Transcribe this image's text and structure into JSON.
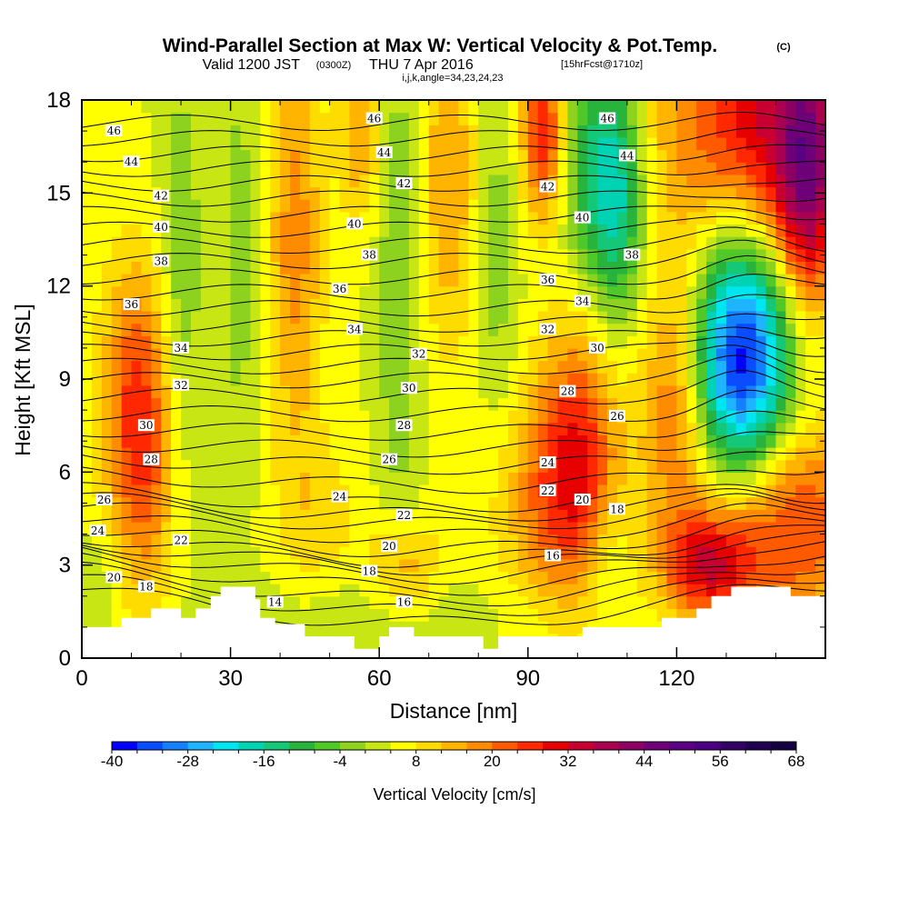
{
  "chart_data": {
    "type": "heatmap",
    "title": "Wind-Parallel Section at Max W: Vertical Velocity & Pot.Temp.",
    "title_mark": "(C)",
    "subtitle": {
      "valid": "Valid 1200 JST",
      "utc": "(0300Z)",
      "date": "THU 7 Apr 2016",
      "forecast": "[15hrFcst@1710z]"
    },
    "subtitle2": "i,j,k,angle=34,23,24,23",
    "xlabel": "Distance [nm]",
    "ylabel": "Height [Kft MSL]",
    "xlim": [
      0,
      150
    ],
    "ylim": [
      0,
      18
    ],
    "x_ticks": [
      0,
      30,
      60,
      90,
      120
    ],
    "y_ticks": [
      0,
      3,
      6,
      9,
      12,
      15,
      18
    ],
    "colorbar": {
      "title": "Vertical Velocity [cm/s]",
      "min": -40,
      "max": 68,
      "step": 4,
      "tick_labels": [
        "-40",
        "-28",
        "-16",
        "-4",
        "8",
        "20",
        "32",
        "44",
        "56",
        "68"
      ],
      "colors": [
        "#0000ff",
        "#0a4cff",
        "#1480ff",
        "#1eb4ff",
        "#00e6f0",
        "#00d2b4",
        "#14c878",
        "#28b43c",
        "#50c828",
        "#8cd21e",
        "#c8e614",
        "#ffff00",
        "#ffdc00",
        "#ffb400",
        "#ff8c00",
        "#ff5a00",
        "#ff2800",
        "#e60000",
        "#c80032",
        "#aa0050",
        "#8c0064",
        "#6e0078",
        "#5a0082",
        "#4b0082",
        "#320064",
        "#1e0050",
        "#140040"
      ]
    },
    "terrain": [
      [
        0,
        1.0
      ],
      [
        8,
        1.0
      ],
      [
        8,
        1.3
      ],
      [
        14,
        1.3
      ],
      [
        14,
        1.6
      ],
      [
        20,
        1.6
      ],
      [
        20,
        1.3
      ],
      [
        23,
        1.3
      ],
      [
        23,
        1.6
      ],
      [
        26,
        1.6
      ],
      [
        26,
        2.0
      ],
      [
        28,
        2.0
      ],
      [
        28,
        2.3
      ],
      [
        35,
        2.3
      ],
      [
        35,
        1.9
      ],
      [
        36,
        1.9
      ],
      [
        36,
        1.3
      ],
      [
        39,
        1.3
      ],
      [
        39,
        1.1
      ],
      [
        45,
        1.1
      ],
      [
        45,
        0.7
      ],
      [
        55,
        0.7
      ],
      [
        55,
        0.3
      ],
      [
        60,
        0.3
      ],
      [
        60,
        0.7
      ],
      [
        62,
        0.7
      ],
      [
        62,
        1.0
      ],
      [
        67,
        1.0
      ],
      [
        67,
        0.7
      ],
      [
        81,
        0.7
      ],
      [
        81,
        0.3
      ],
      [
        84,
        0.3
      ],
      [
        84,
        0.7
      ],
      [
        101,
        0.7
      ],
      [
        101,
        1.0
      ],
      [
        117,
        1.0
      ],
      [
        117,
        1.3
      ],
      [
        124,
        1.3
      ],
      [
        124,
        1.6
      ],
      [
        127,
        1.6
      ],
      [
        127,
        2.0
      ],
      [
        131,
        2.0
      ],
      [
        131,
        2.3
      ],
      [
        143,
        2.3
      ],
      [
        143,
        2.0
      ],
      [
        150,
        2.0
      ]
    ],
    "field_features": [
      {
        "x": 133,
        "y": 9.5,
        "w": -38,
        "sx": 7,
        "sy": 3.0
      },
      {
        "x": 134,
        "y": 11.5,
        "w": -10,
        "sx": 10,
        "sy": 5.5
      },
      {
        "x": 108,
        "y": 15.0,
        "w": -22,
        "sx": 4,
        "sy": 3.0
      },
      {
        "x": 102,
        "y": 16.0,
        "w": -12,
        "sx": 4,
        "sy": 2.5
      },
      {
        "x": 140,
        "y": 4.5,
        "w": 26,
        "sx": 12,
        "sy": 2.5
      },
      {
        "x": 126,
        "y": 3.0,
        "w": 22,
        "sx": 6,
        "sy": 1.2
      },
      {
        "x": 120,
        "y": 8.5,
        "w": 18,
        "sx": 5,
        "sy": 3.0
      },
      {
        "x": 138,
        "y": 17.0,
        "w": 34,
        "sx": 14,
        "sy": 3.5
      },
      {
        "x": 146,
        "y": 15.0,
        "w": 22,
        "sx": 4,
        "sy": 3.0
      },
      {
        "x": 100,
        "y": 6.5,
        "w": 22,
        "sx": 6,
        "sy": 3.0
      },
      {
        "x": 92,
        "y": 5.0,
        "w": 10,
        "sx": 8,
        "sy": 2.5
      },
      {
        "x": 93,
        "y": 17.0,
        "w": 24,
        "sx": 3,
        "sy": 2.0
      },
      {
        "x": 12,
        "y": 6.5,
        "w": 18,
        "sx": 5,
        "sy": 3.5
      },
      {
        "x": 10,
        "y": 9.5,
        "w": 8,
        "sx": 5,
        "sy": 3.0
      },
      {
        "x": 43,
        "y": 13.5,
        "w": 14,
        "sx": 4,
        "sy": 5.0
      },
      {
        "x": 74,
        "y": 15.5,
        "w": 12,
        "sx": 4,
        "sy": 4.0
      },
      {
        "x": 56,
        "y": 17.0,
        "w": 12,
        "sx": 3,
        "sy": 2.0
      },
      {
        "x": 65,
        "y": 2.8,
        "w": 12,
        "sx": 5,
        "sy": 1.2
      },
      {
        "x": 48,
        "y": 4.5,
        "w": 6,
        "sx": 6,
        "sy": 2.0
      },
      {
        "x": 20,
        "y": 12.0,
        "w": -8,
        "sx": 3,
        "sy": 5.0
      },
      {
        "x": 32,
        "y": 13.0,
        "w": -6,
        "sx": 3,
        "sy": 5.0
      },
      {
        "x": 64,
        "y": 12.0,
        "w": -8,
        "sx": 3,
        "sy": 6.0
      },
      {
        "x": 84,
        "y": 13.0,
        "w": -6,
        "sx": 3,
        "sy": 5.0
      },
      {
        "x": 60,
        "y": 1.5,
        "w": -4,
        "sx": 20,
        "sy": 1.0
      },
      {
        "x": 106,
        "y": 3.5,
        "w": -6,
        "sx": 3,
        "sy": 1.5
      },
      {
        "x": 5,
        "y": 2.5,
        "w": -4,
        "sx": 4,
        "sy": 1.5
      }
    ],
    "contour_labels": [
      {
        "x": 6.5,
        "y": 17.0,
        "text": "46"
      },
      {
        "x": 10,
        "y": 16.0,
        "text": "44"
      },
      {
        "x": 16,
        "y": 14.9,
        "text": "42"
      },
      {
        "x": 16,
        "y": 13.9,
        "text": "40"
      },
      {
        "x": 16,
        "y": 12.8,
        "text": "38"
      },
      {
        "x": 10,
        "y": 11.4,
        "text": "36"
      },
      {
        "x": 20,
        "y": 10.0,
        "text": "34"
      },
      {
        "x": 20,
        "y": 8.8,
        "text": "32"
      },
      {
        "x": 13,
        "y": 7.5,
        "text": "30"
      },
      {
        "x": 14,
        "y": 6.4,
        "text": "28"
      },
      {
        "x": 4.5,
        "y": 5.1,
        "text": "26"
      },
      {
        "x": 3.2,
        "y": 4.1,
        "text": "24"
      },
      {
        "x": 20,
        "y": 3.8,
        "text": "22"
      },
      {
        "x": 6.5,
        "y": 2.6,
        "text": "20"
      },
      {
        "x": 13,
        "y": 2.3,
        "text": "18"
      },
      {
        "x": 39,
        "y": 1.8,
        "text": "14"
      },
      {
        "x": 59,
        "y": 17.4,
        "text": "46"
      },
      {
        "x": 61,
        "y": 16.3,
        "text": "44"
      },
      {
        "x": 65,
        "y": 15.3,
        "text": "42"
      },
      {
        "x": 55,
        "y": 14.0,
        "text": "40"
      },
      {
        "x": 58,
        "y": 13.0,
        "text": "38"
      },
      {
        "x": 52,
        "y": 11.9,
        "text": "36"
      },
      {
        "x": 55,
        "y": 10.6,
        "text": "34"
      },
      {
        "x": 68,
        "y": 9.8,
        "text": "32"
      },
      {
        "x": 66,
        "y": 8.7,
        "text": "30"
      },
      {
        "x": 65,
        "y": 7.5,
        "text": "28"
      },
      {
        "x": 62,
        "y": 6.4,
        "text": "26"
      },
      {
        "x": 52,
        "y": 5.2,
        "text": "24"
      },
      {
        "x": 65,
        "y": 4.6,
        "text": "22"
      },
      {
        "x": 62,
        "y": 3.6,
        "text": "20"
      },
      {
        "x": 58,
        "y": 2.8,
        "text": "18"
      },
      {
        "x": 65,
        "y": 1.8,
        "text": "16"
      },
      {
        "x": 106,
        "y": 17.4,
        "text": "46"
      },
      {
        "x": 110,
        "y": 16.2,
        "text": "44"
      },
      {
        "x": 94,
        "y": 15.2,
        "text": "42"
      },
      {
        "x": 101,
        "y": 14.2,
        "text": "40"
      },
      {
        "x": 111,
        "y": 13.0,
        "text": "38"
      },
      {
        "x": 94,
        "y": 12.2,
        "text": "36"
      },
      {
        "x": 101,
        "y": 11.5,
        "text": "34"
      },
      {
        "x": 94,
        "y": 10.6,
        "text": "32"
      },
      {
        "x": 104,
        "y": 10.0,
        "text": "30"
      },
      {
        "x": 98,
        "y": 8.6,
        "text": "28"
      },
      {
        "x": 108,
        "y": 7.8,
        "text": "26"
      },
      {
        "x": 94,
        "y": 6.3,
        "text": "24"
      },
      {
        "x": 94,
        "y": 5.4,
        "text": "22"
      },
      {
        "x": 101,
        "y": 5.1,
        "text": "20"
      },
      {
        "x": 108,
        "y": 4.8,
        "text": "18"
      },
      {
        "x": 95,
        "y": 3.3,
        "text": "16"
      }
    ]
  }
}
